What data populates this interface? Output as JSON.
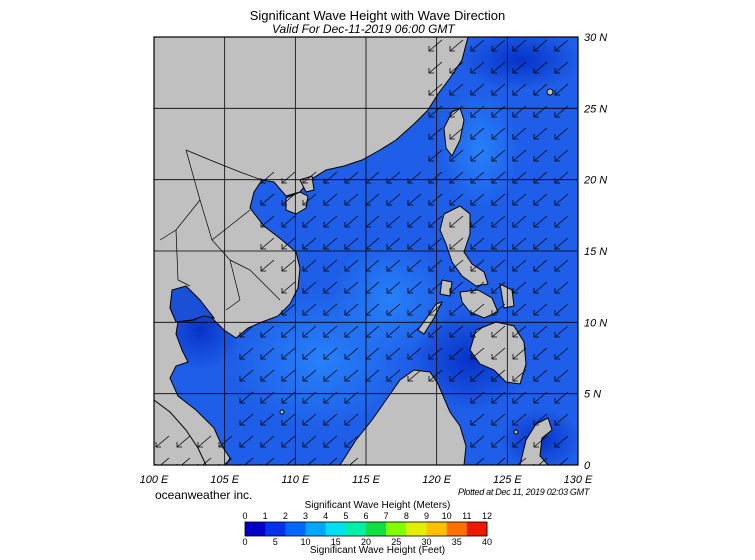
{
  "header": {
    "title": "Significant Wave Height with Wave Direction",
    "subtitle": "Valid For Dec-11-2019 06:00 GMT"
  },
  "map": {
    "lon_labels": [
      "100 E",
      "105 E",
      "110 E",
      "115 E",
      "120 E",
      "125 E",
      "130 E"
    ],
    "lat_labels": [
      "30 N",
      "25 N",
      "20 N",
      "15 N",
      "10 N",
      "5 N",
      "0"
    ],
    "land_color": "#c0c0c0",
    "sea_color": "#1e5ee8",
    "wave_direction": "toward southwest",
    "arrow_icon": "arrow-icon"
  },
  "footer": {
    "credit": "oceanweather inc.",
    "plotted": "Plotted at Dec 11, 2019 02:03 GMT"
  },
  "colorbar": {
    "title_meters": "Significant Wave Height (Meters)",
    "title_feet": "Significant Wave Height (Feet)",
    "meter_ticks": [
      "0",
      "1",
      "2",
      "3",
      "4",
      "5",
      "6",
      "7",
      "8",
      "9",
      "10",
      "11",
      "12"
    ],
    "feet_ticks": [
      "0",
      "5",
      "10",
      "15",
      "20",
      "25",
      "30",
      "35",
      "40"
    ],
    "colors": [
      "#0000c8",
      "#0030f0",
      "#0068ff",
      "#00a8ff",
      "#00e0f0",
      "#00f0a8",
      "#10e040",
      "#80ff00",
      "#e0f000",
      "#ffc000",
      "#ff7000",
      "#f01800"
    ]
  }
}
